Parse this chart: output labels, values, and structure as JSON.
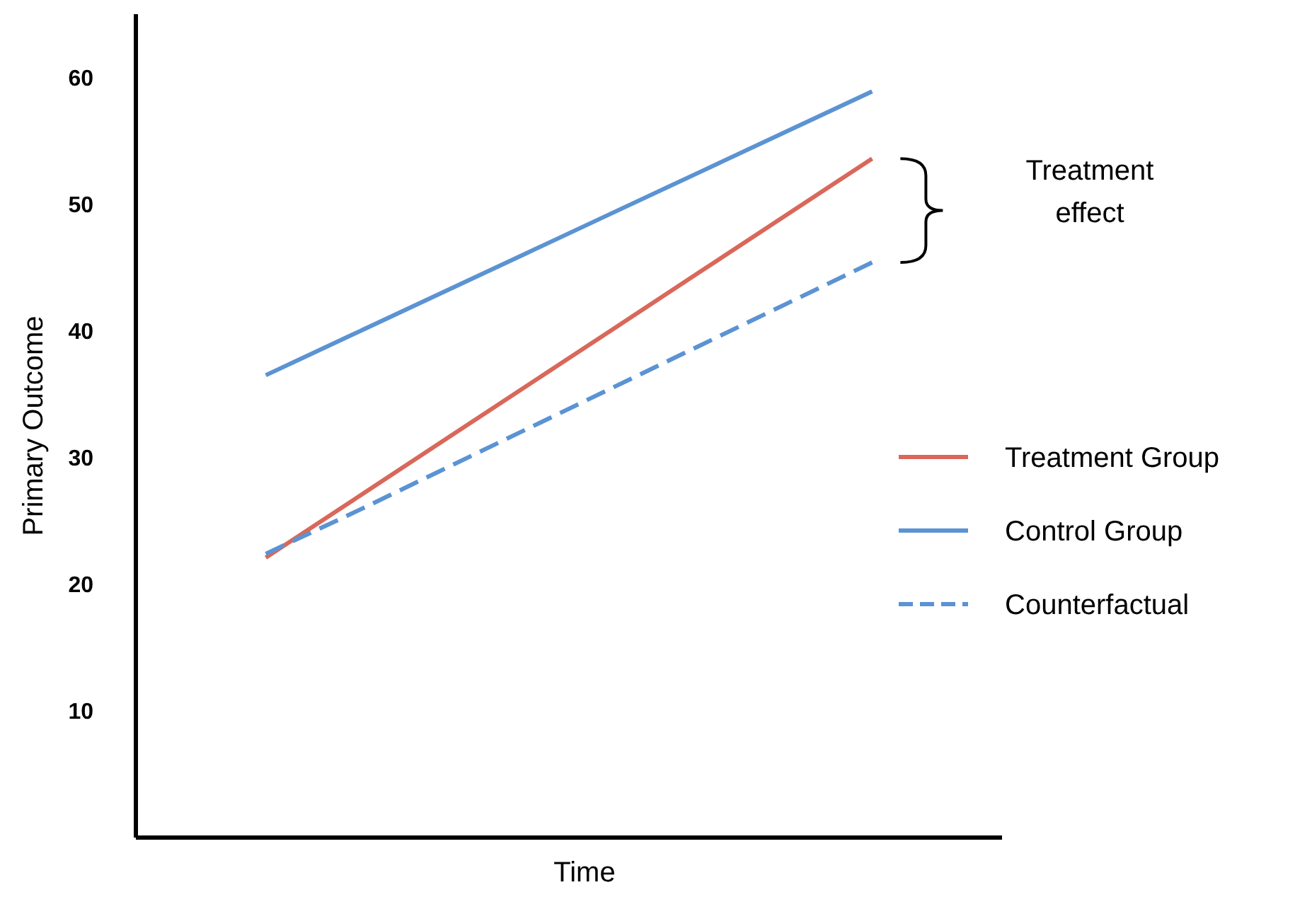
{
  "chart_data": {
    "type": "line",
    "xlabel": "Time",
    "ylabel": "Primary Outcome",
    "categories": [
      null,
      null,
      null,
      null,
      null,
      null,
      null,
      null,
      null,
      null
    ],
    "ylim": [
      0,
      65
    ],
    "yticks": [
      10,
      20,
      30,
      40,
      50,
      60
    ],
    "grid": false,
    "legend": "right",
    "marker": "none",
    "annotations": [
      "Treatment effect"
    ],
    "series": [
      {
        "name": "Treatment Group",
        "color": "#d9685a",
        "values": [
          null,
          22.1,
          26.6,
          31.1,
          35.6,
          40.1,
          44.6,
          49.1,
          53.6,
          null
        ],
        "line_style": "solid"
      },
      {
        "name": "Control Group",
        "color": "#5b93d3",
        "values": [
          null,
          36.5,
          39.7,
          42.9,
          46.1,
          49.3,
          52.5,
          55.7,
          58.9,
          null
        ],
        "line_style": "solid"
      },
      {
        "name": "Counterfactual",
        "color": "#5b93d3",
        "values": [
          null,
          22.4,
          25.6,
          28.9,
          32.2,
          35.5,
          38.8,
          42.1,
          45.4,
          null
        ],
        "line_style": "dashed"
      }
    ]
  }
}
